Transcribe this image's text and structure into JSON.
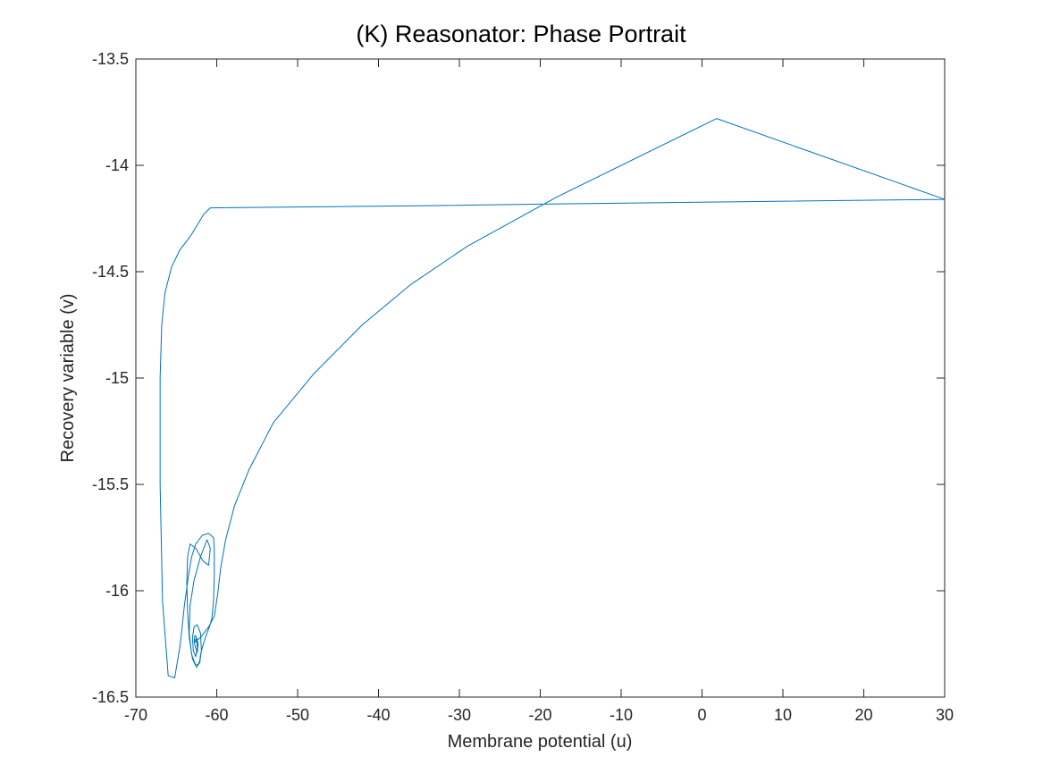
{
  "chart_data": {
    "type": "line",
    "title": "(K) Reasonator: Phase Portrait",
    "xlabel": "Membrane potential (u)",
    "ylabel": "Recovery variable (v)",
    "xlim": [
      -70,
      30
    ],
    "ylim": [
      -16.5,
      -13.5
    ],
    "xticks": [
      -70,
      -60,
      -50,
      -40,
      -30,
      -20,
      -10,
      0,
      10,
      20,
      30
    ],
    "yticks": [
      -16.5,
      -16,
      -15.5,
      -15,
      -14.5,
      -14,
      -13.5
    ],
    "xtick_labels": [
      "-70",
      "-60",
      "-50",
      "-40",
      "-30",
      "-20",
      "-10",
      "0",
      "10",
      "20",
      "30"
    ],
    "ytick_labels": [
      "-16.5",
      "-16",
      "-15.5",
      "-15",
      "-14.5",
      "-14",
      "-13.5"
    ],
    "grid": false,
    "series": [
      {
        "color": "#0072BD",
        "x": [
          -62.7,
          -62.5,
          -62.3,
          -62.4,
          -62.6,
          -62.8,
          -62.7,
          -62.5,
          -62.4,
          -62.6,
          -62.9,
          -63.0,
          -62.8,
          -62.4,
          -62.0,
          -61.9,
          -62.1,
          -62.6,
          -63.1,
          -63.4,
          -63.3,
          -62.8,
          -62.0,
          -61.2,
          -60.8,
          -61.0,
          -61.7,
          -62.6,
          -63.3,
          -63.6,
          -63.7,
          -63.6,
          -63.4,
          -63.0,
          -62.5,
          -62.3,
          -62.1,
          -62.0,
          -61.8,
          -61.4,
          -60.9,
          -60.6,
          -60.4,
          -60.3,
          -60.3,
          -60.4,
          -61.0,
          -61.8,
          -62.6,
          -63.1,
          -63.5,
          -64.0,
          -64.5,
          -65.2,
          -66.0,
          -66.7,
          -67.0,
          -67.0,
          -66.8,
          -66.4,
          -65.6,
          -64.6,
          -63.2,
          -61.6,
          -60.8,
          -35.0,
          -15.0,
          30.0,
          1.8,
          -18.0,
          -29.0,
          -36.0,
          -42.0,
          -48.0,
          -53.0,
          -56.0,
          -57.8,
          -58.9,
          -59.5,
          -59.9,
          -60.3,
          -61.0,
          -62.0,
          -62.7,
          -62.5
        ],
        "y": [
          -16.24,
          -16.22,
          -16.25,
          -16.29,
          -16.27,
          -16.24,
          -16.21,
          -16.22,
          -16.27,
          -16.31,
          -16.28,
          -16.22,
          -16.17,
          -16.16,
          -16.2,
          -16.28,
          -16.34,
          -16.35,
          -16.3,
          -16.2,
          -16.07,
          -15.95,
          -15.84,
          -15.76,
          -15.8,
          -15.88,
          -15.86,
          -15.8,
          -15.78,
          -15.84,
          -15.96,
          -16.1,
          -16.22,
          -16.32,
          -16.36,
          -16.35,
          -16.33,
          -16.3,
          -16.27,
          -16.22,
          -16.17,
          -16.13,
          -16.05,
          -15.92,
          -15.8,
          -15.75,
          -15.73,
          -15.74,
          -15.78,
          -15.84,
          -15.93,
          -16.07,
          -16.25,
          -16.41,
          -16.4,
          -16.05,
          -15.5,
          -15.0,
          -14.75,
          -14.6,
          -14.48,
          -14.4,
          -14.33,
          -14.23,
          -14.2,
          -14.19,
          -14.18,
          -14.16,
          -13.78,
          -14.15,
          -14.38,
          -14.56,
          -14.75,
          -14.98,
          -15.21,
          -15.43,
          -15.6,
          -15.76,
          -15.89,
          -16.02,
          -16.12,
          -16.17,
          -16.22,
          -16.24,
          -16.24
        ]
      }
    ]
  }
}
